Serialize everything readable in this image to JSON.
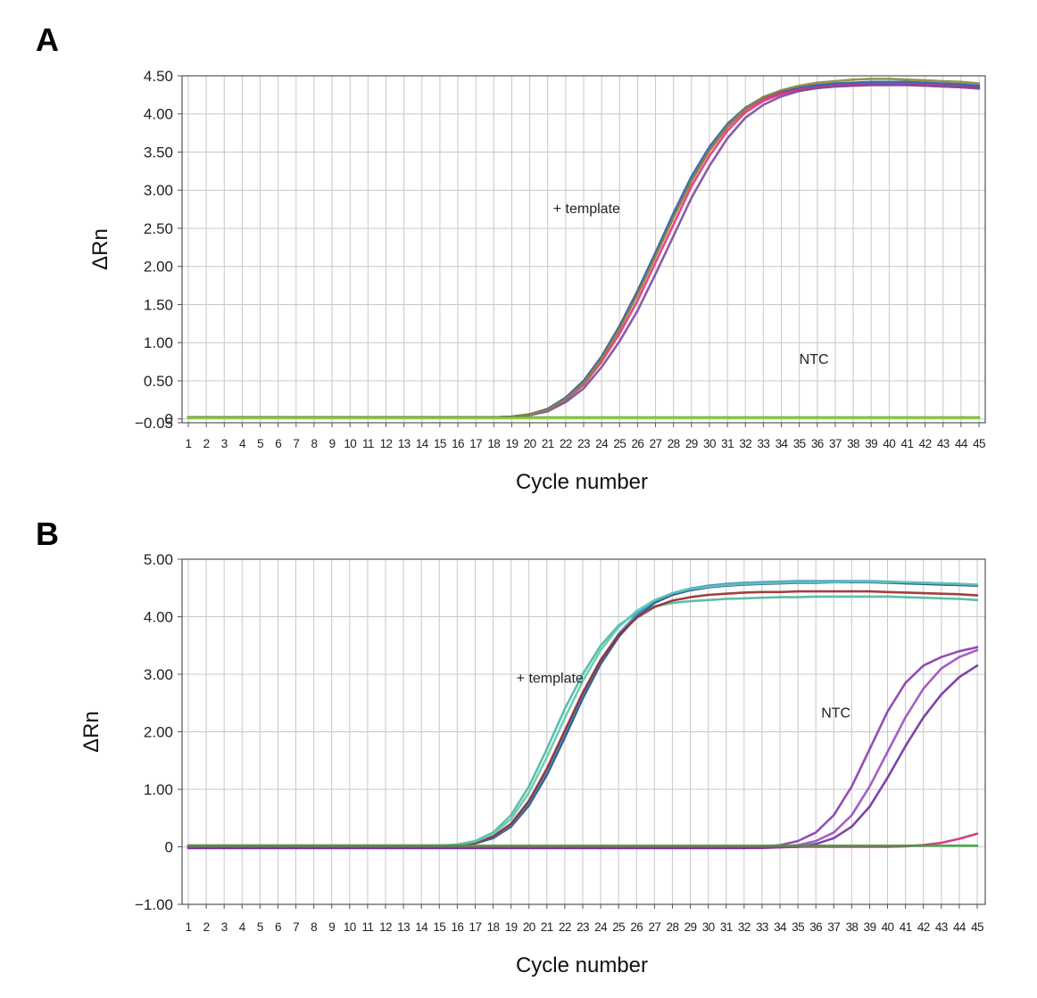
{
  "chart_data": [
    {
      "panel": "A",
      "type": "line",
      "xlabel": "Cycle number",
      "ylabel": "ΔRn",
      "x": [
        1,
        2,
        3,
        4,
        5,
        6,
        7,
        8,
        9,
        10,
        11,
        12,
        13,
        14,
        15,
        16,
        17,
        18,
        19,
        20,
        21,
        22,
        23,
        24,
        25,
        26,
        27,
        28,
        29,
        30,
        31,
        32,
        33,
        34,
        35,
        36,
        37,
        38,
        39,
        40,
        41,
        42,
        43,
        44,
        45
      ],
      "ylim": [
        -0.05,
        4.5
      ],
      "yticks": [
        -0.05,
        0,
        0.5,
        1.0,
        1.5,
        2.0,
        2.5,
        3.0,
        3.5,
        4.0,
        4.5
      ],
      "ytick_labels": [
        "−0.05",
        "0",
        "0.50",
        "1.00",
        "1.50",
        "2.00",
        "2.50",
        "3.00",
        "3.50",
        "4.00",
        "4.50"
      ],
      "grid": true,
      "annotations": [
        {
          "text": "+ template",
          "x": 21.3,
          "y": 2.7
        },
        {
          "text": "NTC",
          "x": 35.0,
          "y": 0.72
        }
      ],
      "series": [
        {
          "color": "#e8307d",
          "values": [
            0.02,
            0.02,
            0.02,
            0.02,
            0.02,
            0.02,
            0.02,
            0.02,
            0.02,
            0.02,
            0.02,
            0.02,
            0.02,
            0.02,
            0.02,
            0.02,
            0.02,
            0.02,
            0.03,
            0.06,
            0.12,
            0.25,
            0.45,
            0.75,
            1.12,
            1.55,
            2.05,
            2.55,
            3.05,
            3.45,
            3.78,
            4.02,
            4.17,
            4.26,
            4.31,
            4.34,
            4.36,
            4.37,
            4.38,
            4.38,
            4.38,
            4.37,
            4.36,
            4.35,
            4.33
          ]
        },
        {
          "color": "#d6287a",
          "values": [
            0.02,
            0.02,
            0.02,
            0.02,
            0.02,
            0.02,
            0.02,
            0.02,
            0.02,
            0.02,
            0.02,
            0.02,
            0.02,
            0.02,
            0.02,
            0.02,
            0.02,
            0.02,
            0.03,
            0.06,
            0.13,
            0.27,
            0.48,
            0.8,
            1.2,
            1.65,
            2.15,
            2.65,
            3.12,
            3.52,
            3.83,
            4.06,
            4.2,
            4.28,
            4.33,
            4.36,
            4.38,
            4.39,
            4.4,
            4.4,
            4.4,
            4.39,
            4.38,
            4.37,
            4.35
          ]
        },
        {
          "color": "#7c4a9e",
          "values": [
            0.02,
            0.02,
            0.02,
            0.02,
            0.02,
            0.02,
            0.02,
            0.02,
            0.02,
            0.02,
            0.02,
            0.02,
            0.02,
            0.02,
            0.02,
            0.02,
            0.02,
            0.02,
            0.03,
            0.05,
            0.1,
            0.22,
            0.4,
            0.68,
            1.02,
            1.42,
            1.9,
            2.4,
            2.9,
            3.32,
            3.68,
            3.95,
            4.12,
            4.23,
            4.3,
            4.34,
            4.36,
            4.37,
            4.38,
            4.38,
            4.38,
            4.37,
            4.36,
            4.35,
            4.34
          ]
        },
        {
          "color": "#2a5fa8",
          "values": [
            0.02,
            0.02,
            0.02,
            0.02,
            0.02,
            0.02,
            0.02,
            0.02,
            0.02,
            0.02,
            0.02,
            0.02,
            0.02,
            0.02,
            0.02,
            0.02,
            0.02,
            0.02,
            0.03,
            0.06,
            0.13,
            0.28,
            0.5,
            0.82,
            1.22,
            1.68,
            2.18,
            2.7,
            3.18,
            3.57,
            3.87,
            4.08,
            4.22,
            4.3,
            4.35,
            4.38,
            4.4,
            4.41,
            4.42,
            4.42,
            4.42,
            4.41,
            4.4,
            4.39,
            4.37
          ]
        },
        {
          "color": "#8a8a3a",
          "values": [
            0.02,
            0.02,
            0.02,
            0.02,
            0.02,
            0.02,
            0.02,
            0.02,
            0.02,
            0.02,
            0.02,
            0.02,
            0.02,
            0.02,
            0.02,
            0.02,
            0.02,
            0.02,
            0.03,
            0.06,
            0.12,
            0.26,
            0.47,
            0.79,
            1.18,
            1.63,
            2.13,
            2.64,
            3.12,
            3.52,
            3.84,
            4.07,
            4.22,
            4.31,
            4.37,
            4.41,
            4.43,
            4.45,
            4.46,
            4.46,
            4.45,
            4.44,
            4.43,
            4.42,
            4.4
          ]
        },
        {
          "color": "#3aa040",
          "values": [
            0.02,
            0.02,
            0.02,
            0.02,
            0.02,
            0.02,
            0.02,
            0.02,
            0.02,
            0.02,
            0.02,
            0.02,
            0.02,
            0.02,
            0.02,
            0.02,
            0.02,
            0.02,
            0.02,
            0.02,
            0.02,
            0.02,
            0.02,
            0.02,
            0.02,
            0.02,
            0.02,
            0.02,
            0.02,
            0.02,
            0.02,
            0.02,
            0.02,
            0.02,
            0.02,
            0.02,
            0.02,
            0.02,
            0.02,
            0.02,
            0.02,
            0.02,
            0.02,
            0.02,
            0.02
          ]
        },
        {
          "color": "#9ccc3c",
          "values": [
            0.01,
            0.01,
            0.01,
            0.01,
            0.01,
            0.01,
            0.01,
            0.01,
            0.01,
            0.01,
            0.01,
            0.01,
            0.01,
            0.01,
            0.01,
            0.01,
            0.01,
            0.01,
            0.01,
            0.01,
            0.01,
            0.01,
            0.01,
            0.01,
            0.01,
            0.01,
            0.01,
            0.01,
            0.01,
            0.01,
            0.01,
            0.01,
            0.01,
            0.01,
            0.01,
            0.01,
            0.01,
            0.01,
            0.01,
            0.01,
            0.01,
            0.01,
            0.01,
            0.01,
            0.01
          ]
        }
      ]
    },
    {
      "panel": "B",
      "type": "line",
      "xlabel": "Cycle number",
      "ylabel": "ΔRn",
      "x": [
        1,
        2,
        3,
        4,
        5,
        6,
        7,
        8,
        9,
        10,
        11,
        12,
        13,
        14,
        15,
        16,
        17,
        18,
        19,
        20,
        21,
        22,
        23,
        24,
        25,
        26,
        27,
        28,
        29,
        30,
        31,
        32,
        33,
        34,
        35,
        36,
        37,
        38,
        39,
        40,
        41,
        42,
        43,
        44,
        45
      ],
      "ylim": [
        -1.0,
        5.0
      ],
      "yticks": [
        -1.0,
        0,
        1.0,
        2.0,
        3.0,
        4.0,
        5.0
      ],
      "ytick_labels": [
        "−1.00",
        "0",
        "1.00",
        "2.00",
        "3.00",
        "4.00",
        "5.00"
      ],
      "grid": true,
      "annotations": [
        {
          "text": "+ template",
          "x": 19.3,
          "y": 2.85
        },
        {
          "text": "NTC",
          "x": 36.3,
          "y": 2.25
        }
      ],
      "series": [
        {
          "color": "#4ab8a0",
          "values": [
            0.02,
            0.02,
            0.02,
            0.02,
            0.02,
            0.02,
            0.02,
            0.02,
            0.02,
            0.02,
            0.02,
            0.02,
            0.02,
            0.02,
            0.02,
            0.04,
            0.1,
            0.25,
            0.55,
            1.05,
            1.7,
            2.4,
            3.0,
            3.5,
            3.85,
            4.07,
            4.18,
            4.24,
            4.27,
            4.29,
            4.31,
            4.32,
            4.33,
            4.34,
            4.34,
            4.35,
            4.35,
            4.35,
            4.35,
            4.35,
            4.34,
            4.33,
            4.32,
            4.31,
            4.29
          ]
        },
        {
          "color": "#1f4f8a",
          "values": [
            0.02,
            0.02,
            0.02,
            0.02,
            0.02,
            0.02,
            0.02,
            0.02,
            0.02,
            0.02,
            0.02,
            0.02,
            0.02,
            0.02,
            0.02,
            0.03,
            0.06,
            0.15,
            0.35,
            0.72,
            1.25,
            1.9,
            2.58,
            3.18,
            3.65,
            4.0,
            4.24,
            4.38,
            4.46,
            4.51,
            4.54,
            4.56,
            4.57,
            4.58,
            4.59,
            4.59,
            4.6,
            4.6,
            4.6,
            4.59,
            4.58,
            4.57,
            4.56,
            4.55,
            4.54
          ]
        },
        {
          "color": "#3a8fcf",
          "values": [
            0.02,
            0.02,
            0.02,
            0.02,
            0.02,
            0.02,
            0.02,
            0.02,
            0.02,
            0.02,
            0.02,
            0.02,
            0.02,
            0.02,
            0.02,
            0.03,
            0.07,
            0.17,
            0.38,
            0.77,
            1.32,
            1.98,
            2.65,
            3.24,
            3.7,
            4.04,
            4.27,
            4.41,
            4.49,
            4.54,
            4.57,
            4.59,
            4.6,
            4.61,
            4.62,
            4.62,
            4.62,
            4.62,
            4.62,
            4.61,
            4.6,
            4.59,
            4.58,
            4.57,
            4.55
          ]
        },
        {
          "color": "#9a2a2a",
          "values": [
            0.02,
            0.02,
            0.02,
            0.02,
            0.02,
            0.02,
            0.02,
            0.02,
            0.02,
            0.02,
            0.02,
            0.02,
            0.02,
            0.02,
            0.02,
            0.03,
            0.07,
            0.18,
            0.4,
            0.8,
            1.36,
            2.02,
            2.68,
            3.25,
            3.68,
            3.98,
            4.17,
            4.28,
            4.34,
            4.38,
            4.4,
            4.42,
            4.43,
            4.43,
            4.44,
            4.44,
            4.44,
            4.44,
            4.44,
            4.43,
            4.42,
            4.41,
            4.4,
            4.39,
            4.37
          ]
        },
        {
          "color": "#5fc8b0",
          "values": [
            0.02,
            0.02,
            0.02,
            0.02,
            0.02,
            0.02,
            0.02,
            0.02,
            0.02,
            0.02,
            0.02,
            0.02,
            0.02,
            0.02,
            0.02,
            0.04,
            0.09,
            0.22,
            0.48,
            0.94,
            1.56,
            2.24,
            2.88,
            3.42,
            3.82,
            4.1,
            4.29,
            4.41,
            4.48,
            4.52,
            4.55,
            4.57,
            4.58,
            4.59,
            4.6,
            4.6,
            4.6,
            4.61,
            4.61,
            4.6,
            4.6,
            4.59,
            4.58,
            4.57,
            4.56
          ]
        },
        {
          "color": "#8a3ab0",
          "values": [
            -0.02,
            -0.02,
            -0.02,
            -0.02,
            -0.02,
            -0.02,
            -0.02,
            -0.02,
            -0.02,
            -0.02,
            -0.02,
            -0.02,
            -0.02,
            -0.02,
            -0.02,
            -0.02,
            -0.02,
            -0.02,
            -0.02,
            -0.02,
            -0.02,
            -0.02,
            -0.02,
            -0.02,
            -0.02,
            -0.02,
            -0.02,
            -0.02,
            -0.02,
            -0.02,
            -0.02,
            -0.02,
            0.0,
            0.03,
            0.1,
            0.25,
            0.55,
            1.05,
            1.7,
            2.35,
            2.85,
            3.15,
            3.3,
            3.4,
            3.47
          ]
        },
        {
          "color": "#9b4cc0",
          "values": [
            -0.02,
            -0.02,
            -0.02,
            -0.02,
            -0.02,
            -0.02,
            -0.02,
            -0.02,
            -0.02,
            -0.02,
            -0.02,
            -0.02,
            -0.02,
            -0.02,
            -0.02,
            -0.02,
            -0.02,
            -0.02,
            -0.02,
            -0.02,
            -0.02,
            -0.02,
            -0.02,
            -0.02,
            -0.02,
            -0.02,
            -0.02,
            -0.02,
            -0.02,
            -0.02,
            -0.02,
            -0.02,
            -0.01,
            0.0,
            0.03,
            0.1,
            0.25,
            0.55,
            1.05,
            1.65,
            2.25,
            2.75,
            3.1,
            3.3,
            3.42
          ]
        },
        {
          "color": "#7030a0",
          "values": [
            -0.02,
            -0.02,
            -0.02,
            -0.02,
            -0.02,
            -0.02,
            -0.02,
            -0.02,
            -0.02,
            -0.02,
            -0.02,
            -0.02,
            -0.02,
            -0.02,
            -0.02,
            -0.02,
            -0.02,
            -0.02,
            -0.02,
            -0.02,
            -0.02,
            -0.02,
            -0.02,
            -0.02,
            -0.02,
            -0.02,
            -0.02,
            -0.02,
            -0.02,
            -0.02,
            -0.02,
            -0.02,
            -0.02,
            -0.01,
            0.0,
            0.05,
            0.15,
            0.35,
            0.7,
            1.2,
            1.75,
            2.25,
            2.65,
            2.95,
            3.15
          ]
        },
        {
          "color": "#d62870",
          "values": [
            0.0,
            0.0,
            0.0,
            0.0,
            0.0,
            0.0,
            0.0,
            0.0,
            0.0,
            0.0,
            0.0,
            0.0,
            0.0,
            0.0,
            0.0,
            0.0,
            0.0,
            0.0,
            0.0,
            0.0,
            0.0,
            0.0,
            0.0,
            0.0,
            0.0,
            0.0,
            0.0,
            0.0,
            0.0,
            0.0,
            0.0,
            0.0,
            0.0,
            0.0,
            0.0,
            0.0,
            0.0,
            0.0,
            0.0,
            0.0,
            0.01,
            0.03,
            0.07,
            0.14,
            0.23
          ]
        },
        {
          "color": "#3aa040",
          "values": [
            0.02,
            0.02,
            0.02,
            0.02,
            0.02,
            0.02,
            0.02,
            0.02,
            0.02,
            0.02,
            0.02,
            0.02,
            0.02,
            0.02,
            0.02,
            0.02,
            0.02,
            0.02,
            0.02,
            0.02,
            0.02,
            0.02,
            0.02,
            0.02,
            0.02,
            0.02,
            0.02,
            0.02,
            0.02,
            0.02,
            0.02,
            0.02,
            0.02,
            0.02,
            0.02,
            0.02,
            0.02,
            0.02,
            0.02,
            0.02,
            0.02,
            0.02,
            0.02,
            0.02,
            0.02
          ]
        }
      ]
    }
  ]
}
